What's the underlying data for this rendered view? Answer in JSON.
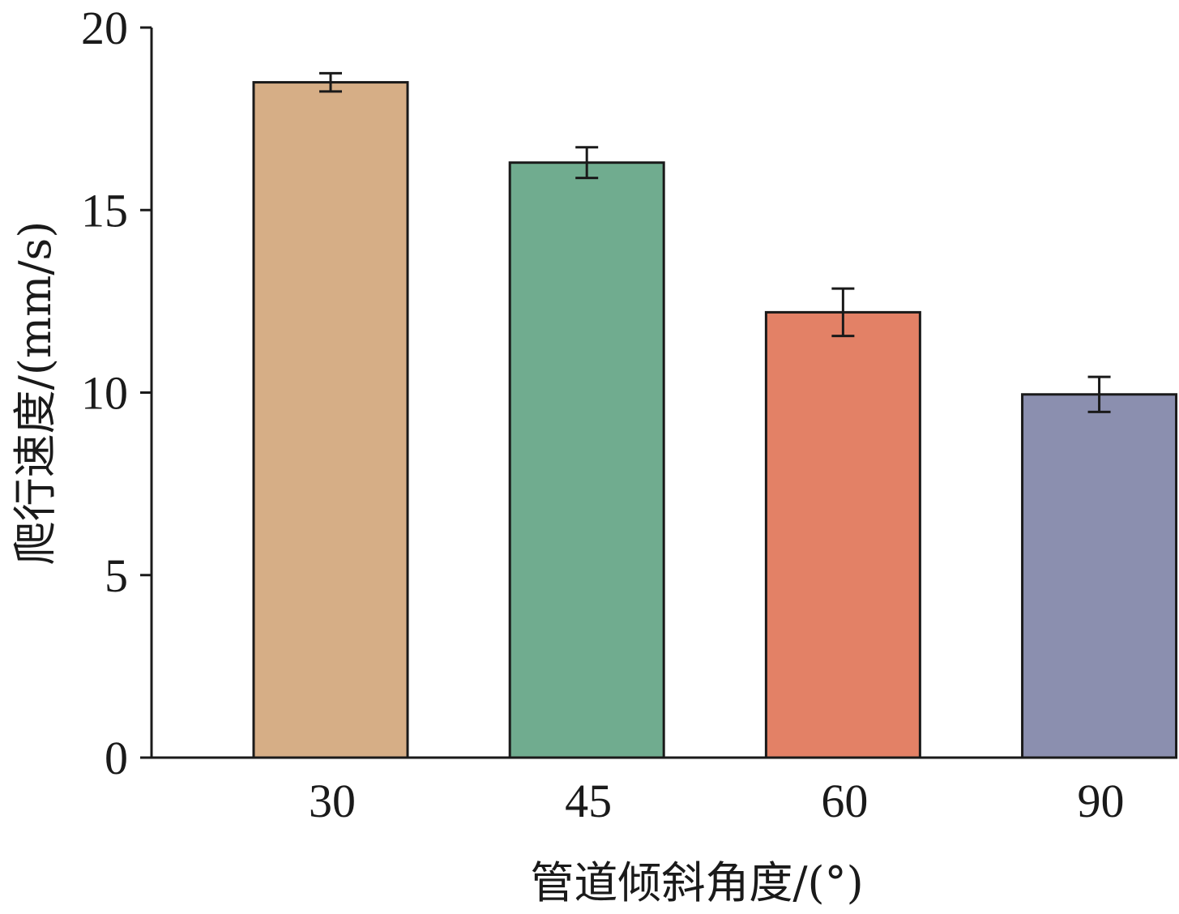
{
  "chart_data": {
    "type": "bar",
    "title": "",
    "xlabel": "管道倾斜角度/(°)",
    "ylabel": "爬行速度/(mm/s)",
    "categories": [
      "30",
      "45",
      "60",
      "90"
    ],
    "values": [
      18.5,
      16.3,
      12.2,
      9.95
    ],
    "errors": [
      0.25,
      0.42,
      0.65,
      0.48
    ],
    "colors": [
      "#d6ae86",
      "#70ac8f",
      "#e38166",
      "#8b8faf"
    ],
    "ylim": [
      0,
      20
    ],
    "yticks": [
      "0",
      "5",
      "10",
      "15",
      "20"
    ],
    "grid": false,
    "legend": "none"
  }
}
